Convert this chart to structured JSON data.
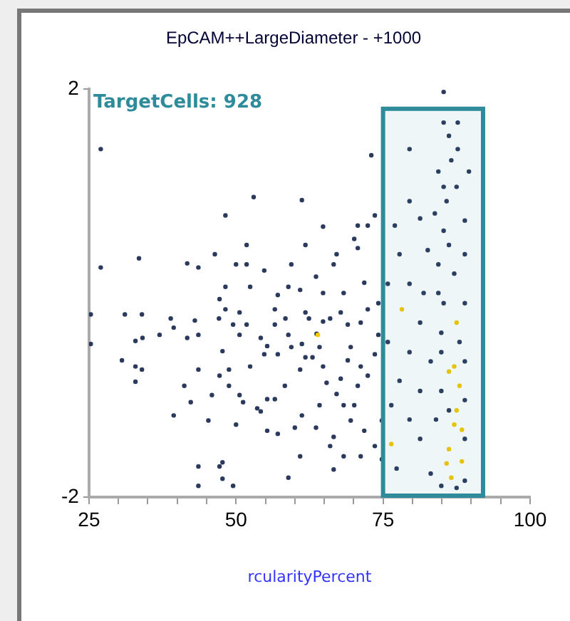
{
  "chart_data": {
    "type": "scatter",
    "title": "EpCAM++LargeDiameter - +1000",
    "xlabel": "rcularityPercent",
    "xlim": [
      25,
      100
    ],
    "ylim": [
      -2,
      2
    ],
    "xticks": [
      25,
      {
        "value": 30,
        "label": null
      },
      {
        "value": 35,
        "label": null
      },
      {
        "value": 40,
        "label": null
      },
      {
        "value": 45,
        "label": null
      },
      50,
      {
        "value": 55,
        "label": null
      },
      {
        "value": 60,
        "label": null
      },
      {
        "value": 65,
        "label": null
      },
      {
        "value": 70,
        "label": null
      },
      75,
      {
        "value": 80,
        "label": null
      },
      {
        "value": 85,
        "label": null
      },
      {
        "value": 90,
        "label": null
      },
      {
        "value": 95,
        "label": null
      },
      100
    ],
    "yticks": [
      -2,
      2
    ],
    "grid": false,
    "legend": false,
    "marker": "circle",
    "bands": [
      {
        "axis": "x",
        "from": 75,
        "to": 92,
        "label": "TargetCells: 928",
        "color": "#2e8b9a"
      }
    ],
    "series": [
      {
        "color": "#2b3a5c",
        "x": [
          27.0,
          27.0,
          25.3,
          25.3,
          33.5,
          31.1,
          34.0,
          34.1,
          32.9,
          30.6,
          32.9,
          34.0,
          32.9,
          37.0,
          38.9,
          39.4,
          41.7,
          43.6,
          43.0,
          41.7,
          43.6,
          41.2,
          42.3,
          39.4,
          43.6,
          43.6,
          43.6,
          45.3,
          45.9,
          46.4,
          48.2,
          47.2,
          48.2,
          48.2,
          47.1,
          47.7,
          47.2,
          48.8,
          47.7,
          47.2,
          47.7,
          49.5,
          48.8,
          49.5,
          50.0,
          50.6,
          51.8,
          51.8,
          53.0,
          52.4,
          50.6,
          51.8,
          54.2,
          54.8,
          52.4,
          50.6,
          51.2,
          50.0,
          53.6,
          54.2,
          55.3,
          55.3,
          57.1,
          56.6,
          57.1,
          56.6,
          54.8,
          57.1,
          55.3,
          56.6,
          58.4,
          58.9,
          59.4,
          61.2,
          60.9,
          58.9,
          59.4,
          58.3,
          58.9,
          60.9,
          61.8,
          61.2,
          60.0,
          60.9,
          61.2,
          61.8,
          62.4,
          63.6,
          64.8,
          61.8,
          64.8,
          63.7,
          64.2,
          63.0,
          64.8,
          66.0,
          64.8,
          65.4,
          64.2,
          63.6,
          66.6,
          67.1,
          68.3,
          67.8,
          69.0,
          69.5,
          69.0,
          67.8,
          67.1,
          68.3,
          66.6,
          66.0,
          66.6,
          68.3,
          70.1,
          69.5,
          70.7,
          71.2,
          70.1,
          70.7,
          70.7,
          72.4,
          73.6,
          73.0,
          71.8,
          72.4,
          71.2,
          74.2,
          73.6,
          72.4,
          71.8,
          73.6,
          71.2,
          74.8,
          74.8,
          74.2,
          85.3,
          85.3,
          87.7,
          79.5,
          86.2,
          87.7,
          86.6,
          89.6,
          84.4,
          85.3,
          87.5,
          79.5,
          83.8,
          88.9,
          77.0,
          81.3,
          85.3,
          82.6,
          77.8,
          88.9,
          84.4,
          87.1,
          79.5,
          75.8,
          81.9,
          85.3,
          88.9,
          81.3,
          75.8,
          84.9,
          79.5,
          83.1,
          88.9,
          77.8,
          81.3,
          84.9,
          88.9,
          76.4,
          79.5,
          84.0,
          81.3,
          88.9,
          77.3,
          83.1,
          84.9,
          87.5,
          88.9,
          86.2,
          84.9,
          84.4,
          86.2,
          85.8,
          88.0
        ],
        "values": [
          1.41,
          0.25,
          -0.21,
          -0.5,
          0.34,
          -0.21,
          -0.21,
          -0.44,
          -0.47,
          -0.66,
          -0.72,
          -0.75,
          -0.87,
          -0.41,
          -0.25,
          -0.34,
          0.29,
          0.25,
          -0.27,
          -0.44,
          -0.41,
          -0.91,
          -1.07,
          -1.2,
          -0.75,
          -1.7,
          -1.89,
          -1.25,
          -1.0,
          0.38,
          0.76,
          -0.06,
          0.06,
          -0.16,
          -0.25,
          -0.57,
          -0.81,
          -0.75,
          -1.66,
          -1.7,
          -1.82,
          -1.89,
          -0.91,
          -0.31,
          0.28,
          -0.19,
          0.28,
          0.47,
          0.94,
          0.06,
          -0.41,
          -0.31,
          -0.44,
          0.22,
          -0.72,
          -1.0,
          -1.07,
          -1.29,
          -1.13,
          -1.16,
          -1.04,
          -1.35,
          -1.38,
          -1.04,
          -0.02,
          -0.16,
          -0.6,
          -0.6,
          -0.52,
          -0.31,
          -0.25,
          0.06,
          0.28,
          0.91,
          0.03,
          -0.41,
          -0.53,
          -0.91,
          -1.81,
          -0.75,
          -0.63,
          -0.5,
          -1.32,
          -1.6,
          -1.2,
          -0.19,
          -0.25,
          0.16,
          0.65,
          0.47,
          0.0,
          -0.4,
          -0.53,
          -0.63,
          -0.28,
          -0.25,
          -0.72,
          -0.88,
          -1.1,
          -1.32,
          0.28,
          0.38,
          0.0,
          -0.19,
          -0.31,
          -0.53,
          -0.66,
          -0.84,
          -0.99,
          -1.1,
          -1.41,
          -1.5,
          -1.73,
          -1.6,
          -1.1,
          -1.25,
          -0.91,
          -0.72,
          0.53,
          0.44,
          0.66,
          0.66,
          0.76,
          1.35,
          0.1,
          -0.16,
          -0.29,
          -0.41,
          -0.6,
          -0.81,
          -1.35,
          -1.5,
          -1.6,
          -1.25,
          -1.63,
          -0.1,
          1.97,
          1.67,
          1.67,
          1.41,
          1.54,
          1.41,
          1.3,
          1.19,
          1.19,
          1.04,
          1.04,
          0.9,
          0.78,
          0.71,
          0.66,
          0.73,
          0.61,
          0.42,
          0.38,
          0.38,
          0.28,
          0.19,
          0.09,
          0.09,
          0.0,
          -0.1,
          -0.1,
          -0.29,
          -0.48,
          -0.39,
          -0.58,
          -0.67,
          -0.67,
          -0.86,
          -0.96,
          -0.96,
          -1.05,
          -1.1,
          -1.24,
          -1.24,
          -1.43,
          -1.43,
          -1.72,
          -1.77,
          -1.89,
          -1.91,
          -1.84,
          -1.15,
          -0.58,
          0.0,
          0.47,
          0.9,
          -0.48
        ]
      },
      {
        "color": "#f5c800",
        "x": [
          63.9,
          78.2,
          87.5,
          86.2,
          88.0,
          87.1,
          76.4,
          86.2,
          85.8,
          86.6,
          87.1,
          87.5,
          88.4,
          88.4
        ],
        "values": [
          -0.41,
          -0.16,
          -0.29,
          -0.77,
          -0.91,
          -1.29,
          -1.48,
          -1.53,
          -1.67,
          -1.81,
          -0.72,
          -1.15,
          -1.34,
          -1.65
        ]
      }
    ]
  }
}
